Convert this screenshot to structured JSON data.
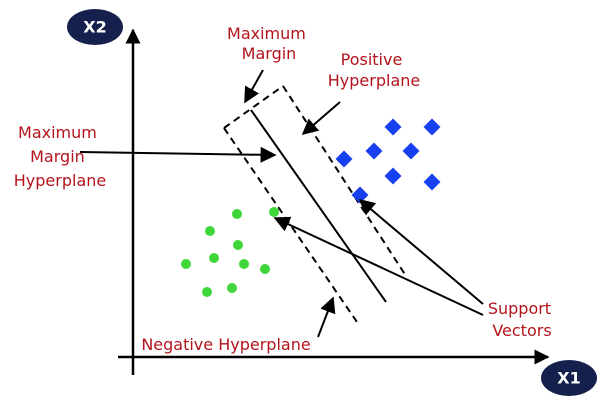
{
  "axes": {
    "y_label": "X2",
    "x_label": "X1"
  },
  "labels": {
    "maximum_margin": [
      "Maximum",
      "Margin"
    ],
    "positive_hyperplane": [
      "Positive",
      "Hyperplane"
    ],
    "maximum_margin_hyperplane": [
      "Maximum",
      "Margin",
      "Hyperplane"
    ],
    "negative_hyperplane": "Negative Hyperplane",
    "support_vectors": [
      "Support",
      "Vectors"
    ]
  }
}
